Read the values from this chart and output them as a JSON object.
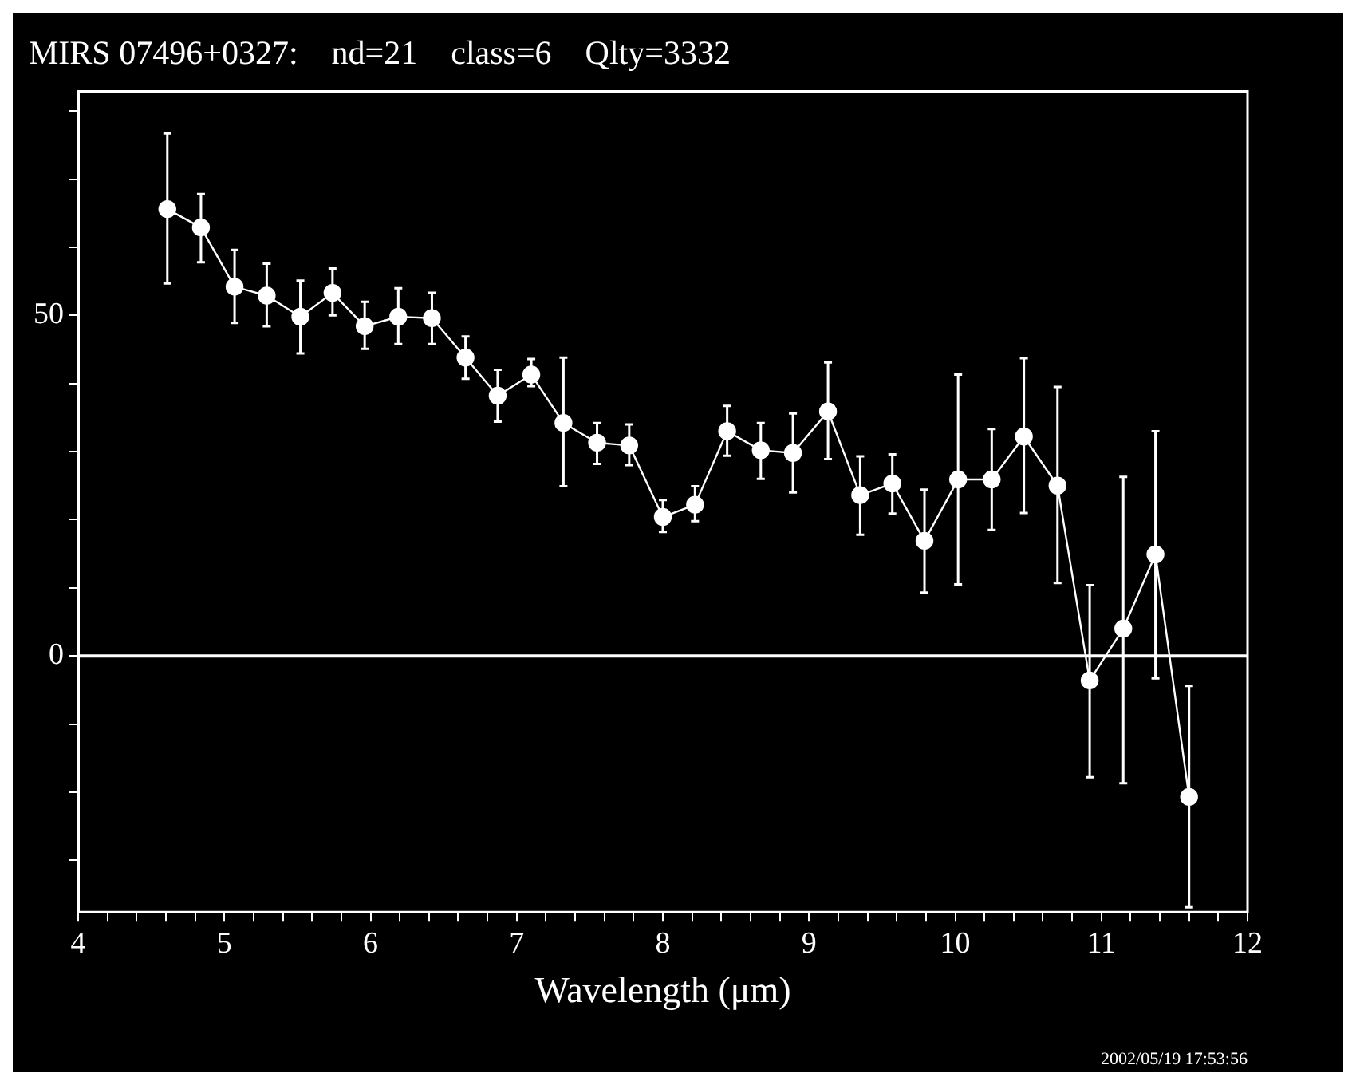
{
  "chart_data": {
    "type": "line",
    "title": "MIRS 07496+0327:    nd=21    class=6    Qlty=3332",
    "xlabel": "Wavelength (μm)",
    "annotations": [
      "2002/05/19 17:53:56"
    ],
    "x": [
      4.61,
      4.84,
      5.07,
      5.29,
      5.52,
      5.74,
      5.96,
      6.19,
      6.42,
      6.65,
      6.87,
      7.1,
      7.32,
      7.55,
      7.77,
      8.0,
      8.22,
      8.44,
      8.67,
      8.89,
      9.13,
      9.35,
      9.57,
      9.79,
      10.02,
      10.25,
      10.47,
      10.7,
      10.92,
      11.15,
      11.37,
      11.6
    ],
    "series": [
      {
        "color": "#ffffff",
        "values": [
          65.6,
          62.9,
          54.2,
          52.9,
          49.8,
          53.3,
          48.4,
          49.8,
          49.6,
          43.8,
          38.2,
          41.3,
          34.2,
          31.3,
          30.9,
          20.4,
          22.2,
          33.0,
          30.2,
          29.8,
          35.9,
          23.6,
          25.3,
          16.9,
          25.9,
          25.9,
          32.2,
          25.0,
          -3.6,
          4.0,
          14.9,
          -20.7
        ],
        "errors": [
          [
            54.7,
            76.7
          ],
          [
            57.8,
            67.8
          ],
          [
            48.9,
            59.6
          ],
          [
            48.4,
            57.6
          ],
          [
            44.4,
            55.1
          ],
          [
            50,
            56.9
          ],
          [
            45.1,
            52
          ],
          [
            45.8,
            54
          ],
          [
            45.8,
            53.3
          ],
          [
            40.7,
            46.9
          ],
          [
            34.4,
            42
          ],
          [
            39.6,
            43.6
          ],
          [
            24.9,
            43.8
          ],
          [
            28.2,
            34.2
          ],
          [
            28,
            34
          ],
          [
            18.2,
            22.9
          ],
          [
            19.8,
            24.9
          ],
          [
            29.4,
            36.7
          ],
          [
            26,
            34.2
          ],
          [
            24,
            35.6
          ],
          [
            28.9,
            43.1
          ],
          [
            17.8,
            29.3
          ],
          [
            20.9,
            29.6
          ],
          [
            9.3,
            24.4
          ],
          [
            10.5,
            41.3
          ],
          [
            18.5,
            33.3
          ],
          [
            21,
            43.7
          ],
          [
            10.7,
            39.5
          ],
          [
            -17.8,
            10.4
          ],
          [
            -18.7,
            26.3
          ],
          [
            -3.3,
            33
          ],
          [
            -36.9,
            -4.4
          ]
        ]
      }
    ],
    "marker": "circle",
    "line_style": "solid",
    "xlim": [
      4,
      12
    ],
    "xticks": [
      4,
      {
        "value": 4.2,
        "label": null
      },
      {
        "value": 4.4,
        "label": null
      },
      {
        "value": 4.6,
        "label": null
      },
      {
        "value": 4.8,
        "label": null
      },
      5,
      {
        "value": 5.2,
        "label": null
      },
      {
        "value": 5.4,
        "label": null
      },
      {
        "value": 5.6,
        "label": null
      },
      {
        "value": 5.8,
        "label": null
      },
      6,
      {
        "value": 6.2,
        "label": null
      },
      {
        "value": 6.4,
        "label": null
      },
      {
        "value": 6.6,
        "label": null
      },
      {
        "value": 6.8,
        "label": null
      },
      7,
      {
        "value": 7.2,
        "label": null
      },
      {
        "value": 7.4,
        "label": null
      },
      {
        "value": 7.6,
        "label": null
      },
      {
        "value": 7.8,
        "label": null
      },
      8,
      {
        "value": 8.2,
        "label": null
      },
      {
        "value": 8.4,
        "label": null
      },
      {
        "value": 8.6,
        "label": null
      },
      {
        "value": 8.8,
        "label": null
      },
      9,
      {
        "value": 9.2,
        "label": null
      },
      {
        "value": 9.4,
        "label": null
      },
      {
        "value": 9.6,
        "label": null
      },
      {
        "value": 9.8,
        "label": null
      },
      10,
      {
        "value": 10.2,
        "label": null
      },
      {
        "value": 10.4,
        "label": null
      },
      {
        "value": 10.6,
        "label": null
      },
      {
        "value": 10.8,
        "label": null
      },
      11,
      {
        "value": 11.2,
        "label": null
      },
      {
        "value": 11.4,
        "label": null
      },
      {
        "value": 11.6,
        "label": null
      },
      {
        "value": 11.8,
        "label": null
      },
      12
    ],
    "ylim": [
      -37.6,
      82.9
    ],
    "yticks": [
      {
        "value": -30,
        "label": null
      },
      {
        "value": -20,
        "label": null
      },
      {
        "value": -10,
        "label": null
      },
      0,
      {
        "value": 10,
        "label": null
      },
      {
        "value": 20,
        "label": null
      },
      {
        "value": 30,
        "label": null
      },
      {
        "value": 40,
        "label": null
      },
      50,
      {
        "value": 60,
        "label": null
      },
      {
        "value": 70,
        "label": null
      },
      {
        "value": 80,
        "label": null
      }
    ],
    "ref_lines": [
      {
        "axis": "y",
        "value": 0,
        "color": "#ffffff"
      }
    ],
    "grid": false,
    "legend": false
  }
}
